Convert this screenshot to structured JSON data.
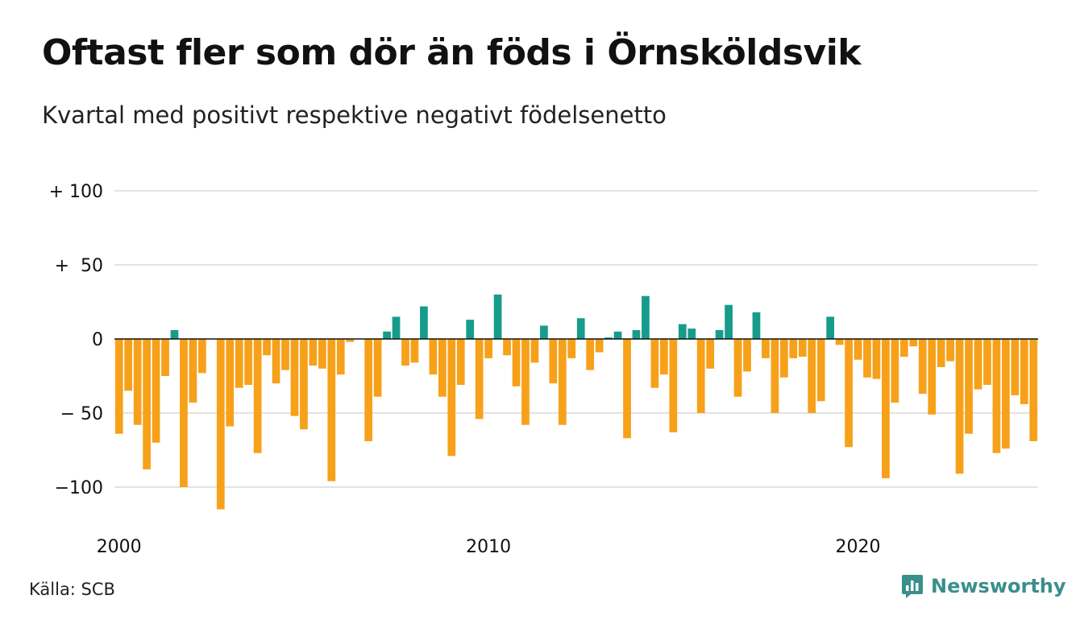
{
  "title": "Oftast fler som dör än föds i Örnsköldsvik",
  "subtitle": "Kvartal med positivt respektive negativt födelsenetto",
  "source": "Källa: SCB",
  "brand": {
    "name": "Newsworthy",
    "icon": "newsworthy-logo-icon",
    "color": "#3a8f8a"
  },
  "chart_data": {
    "type": "bar",
    "x_unit": "quarter",
    "x_start": 2000,
    "ylim": [
      -115,
      100
    ],
    "y_ticks": [
      {
        "value": 100,
        "label": "+ 100"
      },
      {
        "value": 50,
        "label": "+  50"
      },
      {
        "value": 0,
        "label": "0"
      },
      {
        "value": -50,
        "label": "− 50"
      },
      {
        "value": -100,
        "label": "−100"
      }
    ],
    "x_ticks": [
      {
        "value": 2000,
        "label": "2000"
      },
      {
        "value": 2010,
        "label": "2010"
      },
      {
        "value": 2020,
        "label": "2020"
      }
    ],
    "grid": true,
    "colors": {
      "positive": "#179c8c",
      "negative": "#f7a11a",
      "grid": "#e3e3e3",
      "zero": "#111111"
    },
    "values": [
      -64,
      -35,
      -58,
      -88,
      -70,
      -25,
      6,
      -100,
      -43,
      -23,
      0,
      -115,
      -59,
      -33,
      -31,
      -77,
      -11,
      -30,
      -21,
      -52,
      -61,
      -18,
      -20,
      -96,
      -24,
      -2,
      0,
      -69,
      -39,
      5,
      15,
      -18,
      -16,
      22,
      -24,
      -39,
      -79,
      -31,
      13,
      -54,
      -13,
      30,
      -11,
      -32,
      -58,
      -16,
      9,
      -30,
      -58,
      -13,
      14,
      -21,
      -9,
      1,
      5,
      -67,
      6,
      29,
      -33,
      -24,
      -63,
      10,
      7,
      -50,
      -20,
      6,
      23,
      -39,
      -22,
      18,
      -13,
      -50,
      -26,
      -13,
      -12,
      -50,
      -42,
      15,
      -4,
      -73,
      -14,
      -26,
      -27,
      -94,
      -43,
      -12,
      -5,
      -37,
      -51,
      -19,
      -15,
      -91,
      -64,
      -34,
      -31,
      -77,
      -74,
      -38,
      -44,
      -69
    ]
  }
}
